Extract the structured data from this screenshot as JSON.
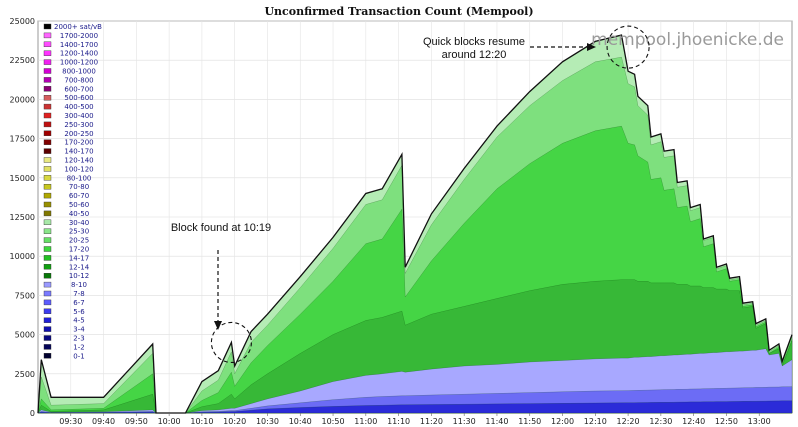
{
  "chart_data": {
    "type": "area",
    "title": "Unconfirmed Transaction Count (Mempool)",
    "watermark": "mempool.jhoenicke.de",
    "ylim": [
      0,
      25000
    ],
    "y_ticks": [
      0,
      2500,
      5000,
      7500,
      10000,
      12500,
      15000,
      17500,
      20000,
      22500,
      25000
    ],
    "x_range": [
      "09:20",
      "13:10"
    ],
    "x_ticks": [
      "09:30",
      "09:40",
      "09:50",
      "10:00",
      "10:10",
      "10:20",
      "10:30",
      "10:40",
      "10:50",
      "11:00",
      "11:10",
      "11:20",
      "11:30",
      "11:40",
      "11:50",
      "12:00",
      "12:10",
      "12:20",
      "12:30",
      "12:40",
      "12:50",
      "13:00"
    ],
    "legend": {
      "placement": "top-left",
      "entries": [
        {
          "label": "2000+ sat/vB",
          "color": "#000000"
        },
        {
          "label": "1700-2000",
          "color": "#ff66ff"
        },
        {
          "label": "1400-1700",
          "color": "#ff4dff"
        },
        {
          "label": "1200-1400",
          "color": "#ff33ff"
        },
        {
          "label": "1000-1200",
          "color": "#f01ff0"
        },
        {
          "label": "800-1000",
          "color": "#d400d4"
        },
        {
          "label": "700-800",
          "color": "#b300b3"
        },
        {
          "label": "600-700",
          "color": "#8a0073"
        },
        {
          "label": "500-600",
          "color": "#d65c5c"
        },
        {
          "label": "400-500",
          "color": "#cc3333"
        },
        {
          "label": "300-400",
          "color": "#e02020"
        },
        {
          "label": "250-300",
          "color": "#c01010"
        },
        {
          "label": "200-250",
          "color": "#a00000"
        },
        {
          "label": "170-200",
          "color": "#800000"
        },
        {
          "label": "140-170",
          "color": "#5c0000"
        },
        {
          "label": "120-140",
          "color": "#e8e880"
        },
        {
          "label": "100-120",
          "color": "#e0e060"
        },
        {
          "label": "80-100",
          "color": "#d8d840"
        },
        {
          "label": "70-80",
          "color": "#c8c820"
        },
        {
          "label": "60-70",
          "color": "#b0a800"
        },
        {
          "label": "50-60",
          "color": "#989000"
        },
        {
          "label": "40-50",
          "color": "#807800"
        },
        {
          "label": "30-40",
          "color": "#a8e8a8"
        },
        {
          "label": "25-30",
          "color": "#8ae68a"
        },
        {
          "label": "20-25",
          "color": "#66e066"
        },
        {
          "label": "17-20",
          "color": "#3cd83c"
        },
        {
          "label": "14-17",
          "color": "#22c022"
        },
        {
          "label": "12-14",
          "color": "#10a010"
        },
        {
          "label": "10-12",
          "color": "#087808"
        },
        {
          "label": "8-10",
          "color": "#9a9aff"
        },
        {
          "label": "7-8",
          "color": "#7a7aff"
        },
        {
          "label": "6-7",
          "color": "#5c5cff"
        },
        {
          "label": "5-6",
          "color": "#3c3cf0"
        },
        {
          "label": "4-5",
          "color": "#2020d8"
        },
        {
          "label": "3-4",
          "color": "#1010b0"
        },
        {
          "label": "2-3",
          "color": "#080880"
        },
        {
          "label": "1-2",
          "color": "#040458"
        },
        {
          "label": "0-1",
          "color": "#020230"
        }
      ]
    },
    "x": [
      "09:20",
      "09:21",
      "09:24",
      "09:40",
      "09:55",
      "09:56",
      "09:59",
      "10:05",
      "10:10",
      "10:15",
      "10:19",
      "10:20",
      "10:25",
      "10:30",
      "10:40",
      "10:50",
      "11:00",
      "11:05",
      "11:11",
      "11:12",
      "11:20",
      "11:30",
      "11:40",
      "11:50",
      "12:00",
      "12:10",
      "12:18",
      "12:20",
      "12:22",
      "12:23",
      "12:26",
      "12:27",
      "12:30",
      "12:31",
      "12:34",
      "12:35",
      "12:38",
      "12:39",
      "12:42",
      "12:43",
      "12:46",
      "12:47",
      "12:50",
      "12:51",
      "12:54",
      "12:55",
      "12:58",
      "12:59",
      "13:02",
      "13:03",
      "13:06",
      "13:07",
      "13:10"
    ],
    "series": [
      {
        "name": "30-40",
        "color": "#b5ecb5",
        "values": [
          0,
          3400,
          1000,
          1000,
          4400,
          0,
          0,
          0,
          2000,
          2700,
          4500,
          3000,
          5200,
          6300,
          8700,
          11200,
          14000,
          14300,
          16500,
          9300,
          12700,
          15600,
          18300,
          20500,
          22400,
          23700,
          24100,
          21800,
          21600,
          20200,
          19600,
          17600,
          17800,
          16700,
          16800,
          14700,
          14800,
          13100,
          13300,
          11100,
          11300,
          9300,
          9500,
          8600,
          8700,
          7000,
          7100,
          5700,
          6000,
          4000,
          4400,
          3300,
          5000
        ]
      },
      {
        "name": "20-25",
        "color": "#7ee07e",
        "values": [
          0,
          2300,
          500,
          600,
          3800,
          0,
          0,
          0,
          1400,
          2100,
          3900,
          2500,
          4500,
          5600,
          8000,
          10500,
          13300,
          13600,
          15800,
          8900,
          12000,
          14900,
          17600,
          19600,
          21200,
          22400,
          22700,
          21000,
          20800,
          19600,
          19000,
          17100,
          17300,
          16300,
          16400,
          14400,
          14500,
          12900,
          13100,
          11000,
          11200,
          9200,
          9400,
          8500,
          8600,
          6900,
          7000,
          5600,
          5900,
          3900,
          4300,
          3200,
          4900
        ]
      },
      {
        "name": "14-17",
        "color": "#45d545",
        "values": [
          0,
          900,
          200,
          300,
          2500,
          0,
          0,
          0,
          800,
          1300,
          2600,
          1700,
          3200,
          4300,
          6300,
          8400,
          10800,
          11100,
          13000,
          7400,
          9700,
          12100,
          14300,
          15900,
          17200,
          18000,
          18300,
          17200,
          17100,
          16400,
          16000,
          14900,
          15000,
          14200,
          14300,
          13100,
          13200,
          12200,
          12400,
          10600,
          10800,
          9000,
          9200,
          8400,
          8500,
          6800,
          6900,
          5500,
          5800,
          3800,
          4200,
          3100,
          4700
        ]
      },
      {
        "name": "12-14",
        "color": "#37b837",
        "values": [
          0,
          500,
          100,
          200,
          1200,
          0,
          0,
          0,
          400,
          600,
          1200,
          900,
          1800,
          2500,
          3800,
          5000,
          5900,
          6100,
          6500,
          5600,
          6300,
          6800,
          7300,
          7800,
          8200,
          8400,
          8500,
          8500,
          8500,
          8400,
          8400,
          8300,
          8300,
          8300,
          8300,
          8200,
          8200,
          8100,
          8100,
          8000,
          8000,
          7900,
          7900,
          7800,
          7800,
          6700,
          6800,
          5400,
          5700,
          3800,
          4100,
          3000,
          4600
        ]
      },
      {
        "name": "8-10",
        "color": "#a8a8ff",
        "values": [
          0,
          200,
          50,
          80,
          200,
          0,
          0,
          0,
          150,
          200,
          300,
          300,
          600,
          900,
          1400,
          2000,
          2400,
          2500,
          2650,
          2600,
          2800,
          3000,
          3100,
          3250,
          3350,
          3450,
          3500,
          3500,
          3550,
          3550,
          3600,
          3600,
          3650,
          3650,
          3700,
          3700,
          3750,
          3750,
          3800,
          3800,
          3850,
          3850,
          3900,
          3900,
          3950,
          3950,
          4000,
          4000,
          4100,
          3700,
          3800,
          3000,
          3400
        ]
      },
      {
        "name": "6-7",
        "color": "#6c6cf5",
        "values": [
          0,
          100,
          30,
          50,
          100,
          0,
          0,
          0,
          80,
          100,
          150,
          150,
          300,
          450,
          650,
          850,
          1000,
          1050,
          1100,
          1100,
          1150,
          1200,
          1250,
          1300,
          1350,
          1400,
          1420,
          1430,
          1440,
          1450,
          1460,
          1470,
          1480,
          1490,
          1500,
          1510,
          1520,
          1530,
          1540,
          1550,
          1560,
          1570,
          1580,
          1590,
          1600,
          1610,
          1620,
          1630,
          1640,
          1650,
          1660,
          1670,
          1680
        ]
      },
      {
        "name": "4-5",
        "color": "#2b2bd8",
        "values": [
          0,
          60,
          20,
          30,
          60,
          0,
          0,
          0,
          50,
          60,
          90,
          90,
          180,
          260,
          350,
          420,
          480,
          500,
          520,
          520,
          540,
          560,
          580,
          600,
          620,
          640,
          650,
          655,
          660,
          665,
          670,
          675,
          680,
          685,
          690,
          695,
          700,
          705,
          710,
          715,
          720,
          725,
          730,
          735,
          740,
          745,
          750,
          755,
          760,
          765,
          770,
          775,
          780
        ]
      }
    ],
    "annotations": [
      {
        "text": "Block found at 10:19",
        "x": "10:19",
        "y": 4500
      },
      {
        "text": "Quick blocks resume",
        "x": "12:20",
        "y": 24100
      },
      {
        "text": "around 12:20",
        "x": "12:20",
        "y": 24100
      }
    ]
  }
}
